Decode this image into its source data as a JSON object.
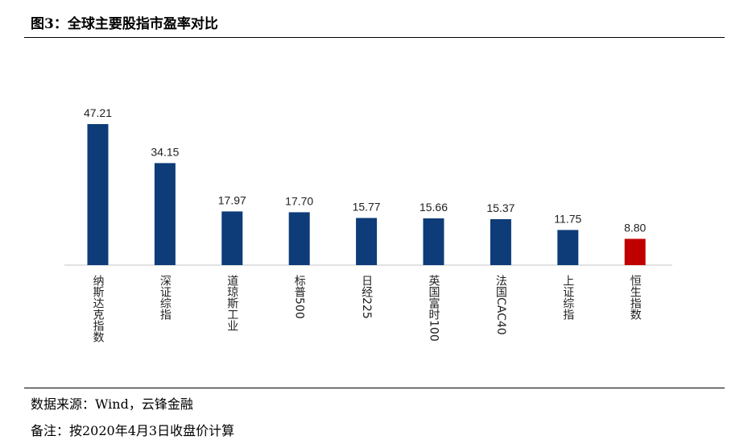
{
  "title": "图3：全球主要股指市盈率对比",
  "footer": {
    "source": "数据来源：Wind，云锋金融",
    "note": "备注：按2020年4月3日收盘价计算"
  },
  "colors": {
    "primary_bar": "#0d3c78",
    "highlight_bar": "#c00000",
    "axis": "#d9d9d9"
  },
  "chart_data": {
    "type": "bar",
    "categories": [
      "纳斯达克指数",
      "深证综指",
      "道琼斯工业",
      "标普500",
      "日经225",
      "英国富时100",
      "法国CAC40",
      "上证综指",
      "恒生指数"
    ],
    "values": [
      47.21,
      34.15,
      17.97,
      17.7,
      15.77,
      15.66,
      15.37,
      11.75,
      8.8
    ],
    "value_labels": [
      "47.21",
      "34.15",
      "17.97",
      "17.70",
      "15.77",
      "15.66",
      "15.37",
      "11.75",
      "8.80"
    ],
    "highlight_index": 8,
    "ylim": [
      0,
      50
    ],
    "grid": false,
    "legend": false,
    "xlabel": "",
    "ylabel": ""
  }
}
